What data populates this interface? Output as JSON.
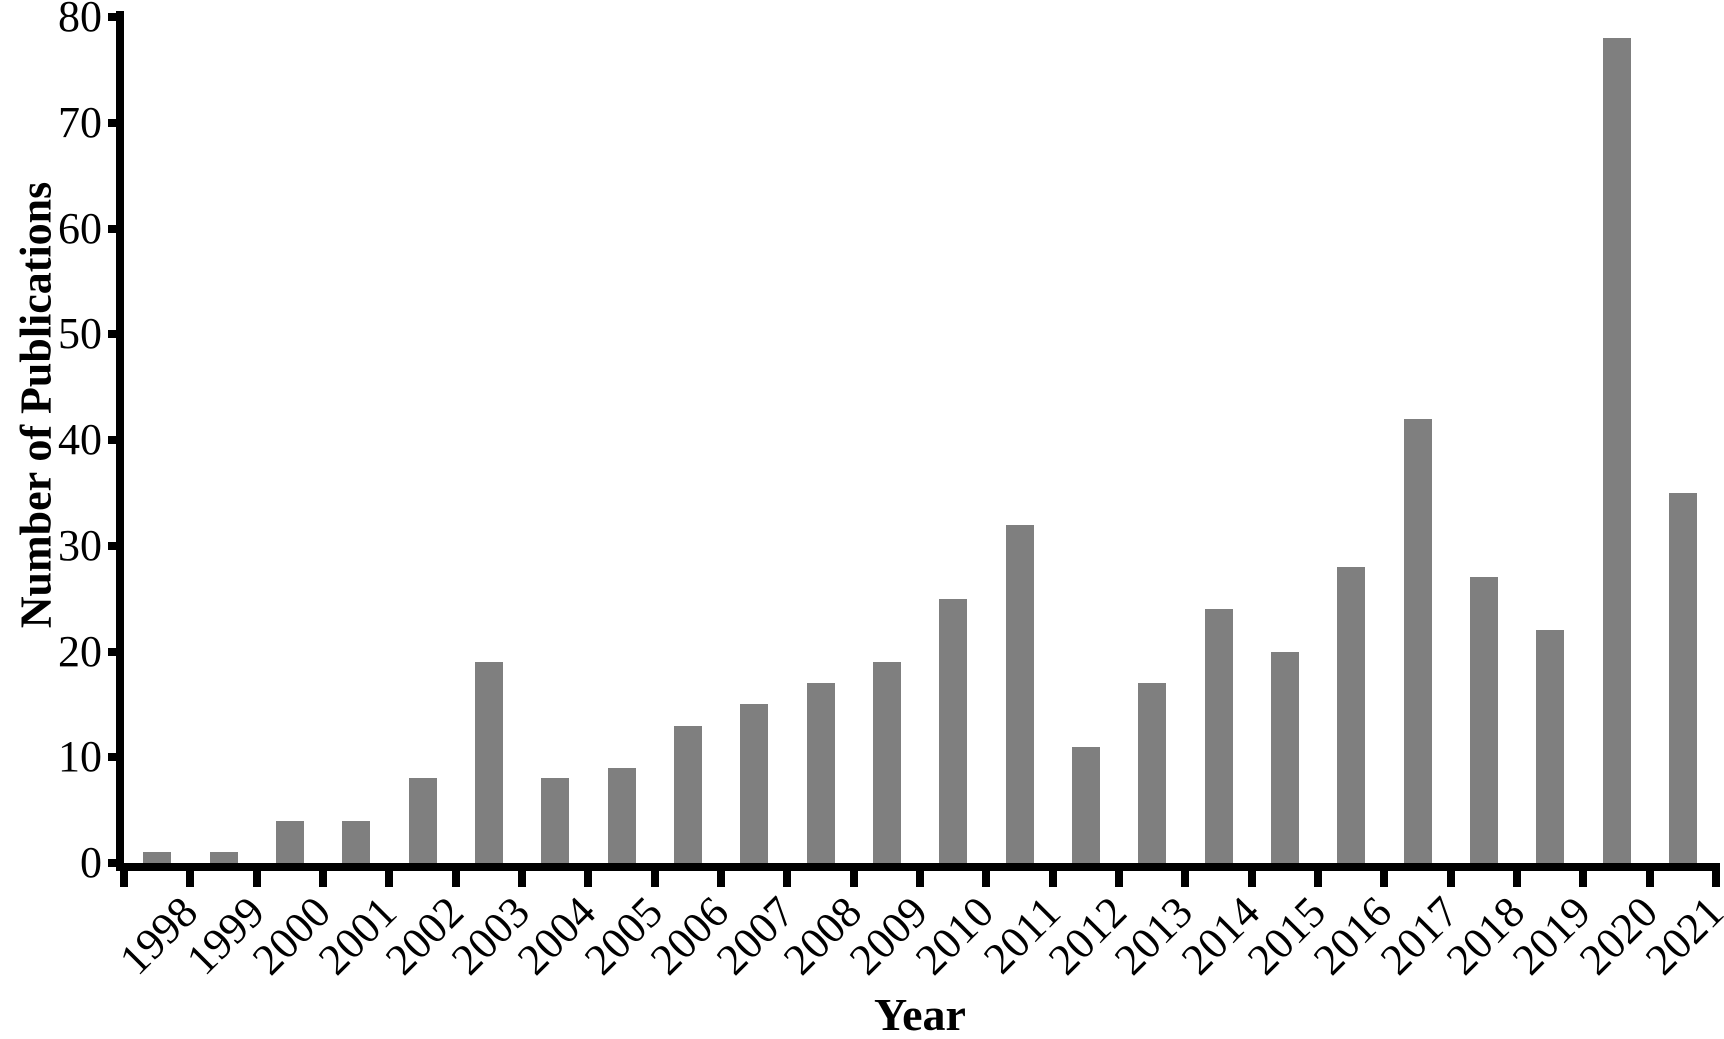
{
  "figure": {
    "background_color": "#ffffff",
    "text_color": "#000000"
  },
  "chart_data": {
    "type": "bar",
    "title": "",
    "xlabel": "Year",
    "ylabel": "Number of Publications",
    "categories": [
      "1998",
      "1999",
      "2000",
      "2001",
      "2002",
      "2003",
      "2004",
      "2005",
      "2006",
      "2007",
      "2008",
      "2009",
      "2010",
      "2011",
      "2012",
      "2013",
      "2014",
      "2015",
      "2016",
      "2017",
      "2018",
      "2019",
      "2020",
      "2021"
    ],
    "values": [
      1,
      1,
      4,
      4,
      8,
      19,
      8,
      9,
      13,
      15,
      17,
      19,
      25,
      32,
      11,
      17,
      24,
      20,
      28,
      42,
      27,
      22,
      78,
      35
    ],
    "ylim": [
      0,
      80
    ],
    "yticks": [
      0,
      10,
      20,
      30,
      40,
      50,
      60,
      70,
      80
    ],
    "grid": false,
    "legend": "none",
    "bar_color": "#7f7f7f",
    "axis_color": "#000000"
  }
}
